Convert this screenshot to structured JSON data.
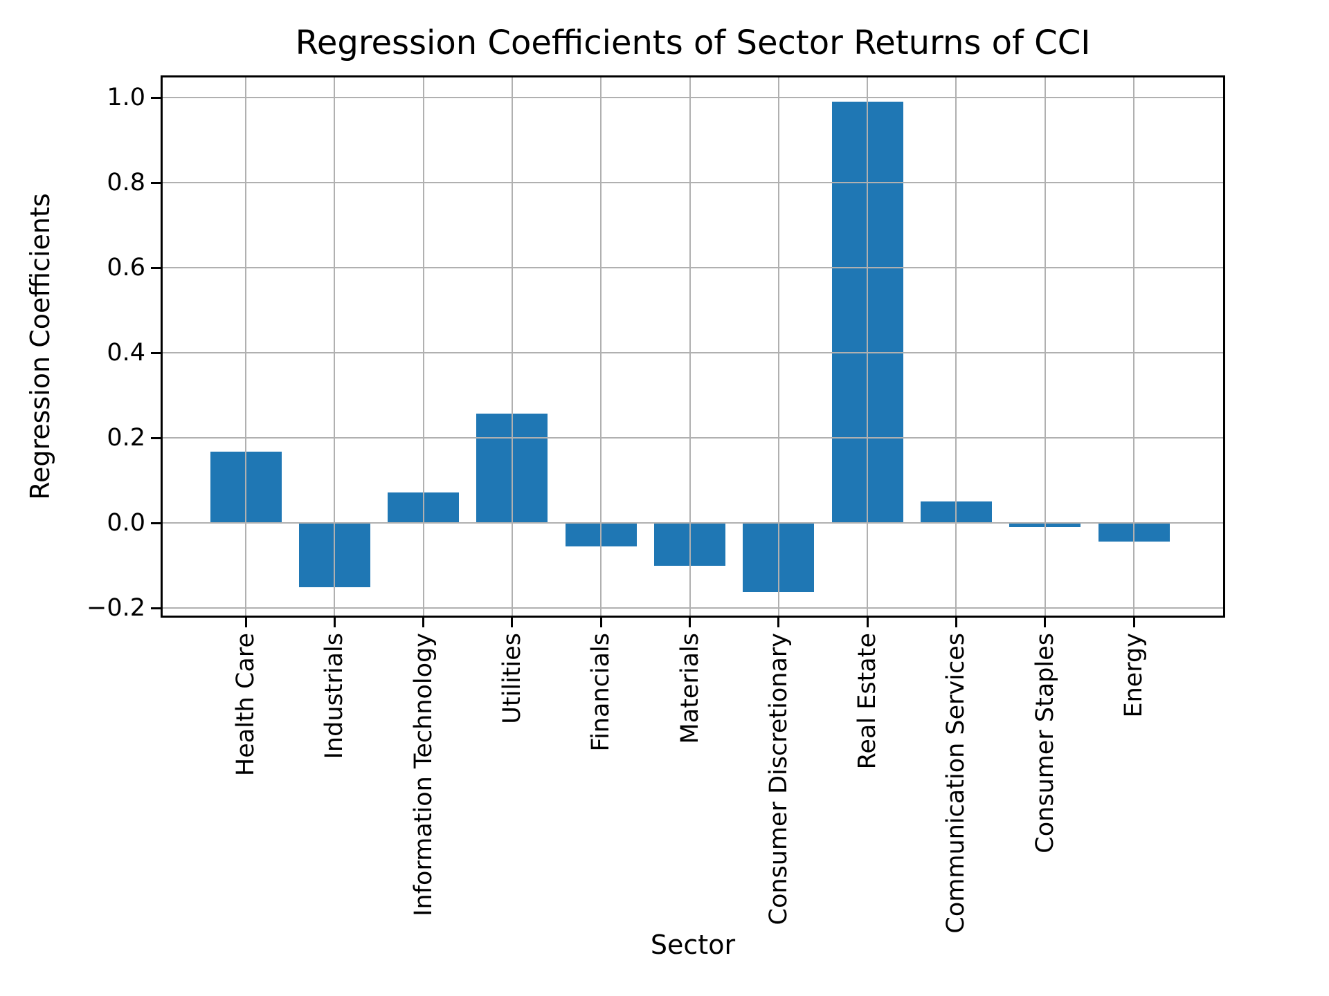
{
  "chart_data": {
    "type": "bar",
    "title": "Regression Coefficients of Sector Returns of CCI",
    "xlabel": "Sector",
    "ylabel": "Regression Coefficients",
    "categories": [
      "Health Care",
      "Industrials",
      "Information Technology",
      "Utilities",
      "Financials",
      "Materials",
      "Consumer Discretionary",
      "Real Estate",
      "Communication Services",
      "Consumer Staples",
      "Energy"
    ],
    "values": [
      0.167,
      -0.151,
      0.072,
      0.257,
      -0.056,
      -0.1,
      -0.162,
      0.991,
      0.051,
      -0.01,
      -0.044
    ],
    "yticks": {
      "values": [
        1.0,
        0.8,
        0.6,
        0.4,
        0.2,
        0.0,
        -0.2
      ],
      "labels": [
        "1.0",
        "0.8",
        "0.6",
        "0.4",
        "0.2",
        "0.0",
        "−0.2"
      ]
    },
    "ylim": [
      -0.218,
      1.047
    ],
    "grid": true,
    "legend_position": "none",
    "bar_color": "#1f77b4",
    "grid_color": "#b0b0b0",
    "spine_color": "#000000"
  }
}
